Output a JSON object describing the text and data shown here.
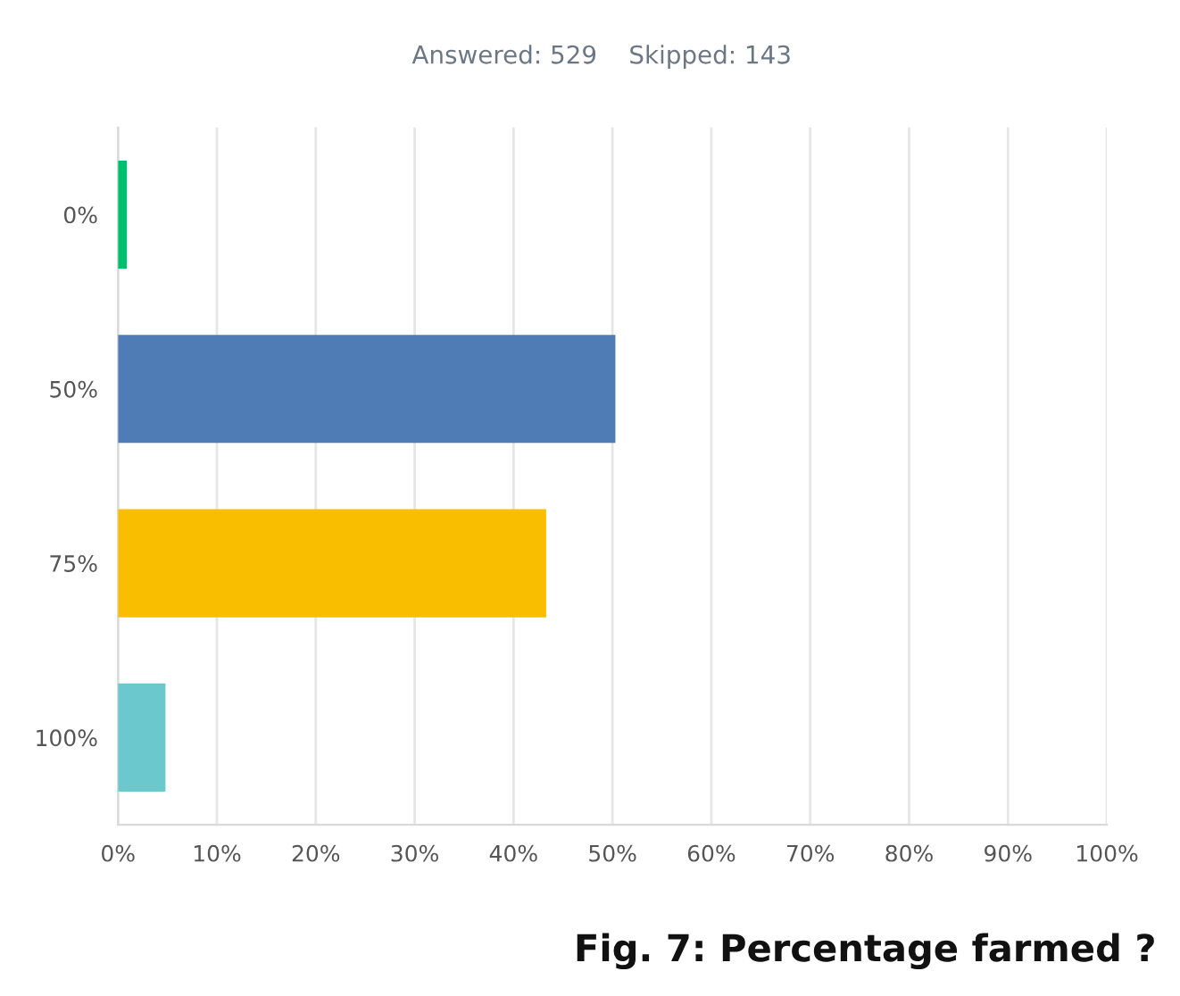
{
  "chart_data": {
    "type": "bar",
    "orientation": "horizontal",
    "subtitle": "Answered: 529    Skipped: 143",
    "categories": [
      "0%",
      "50%",
      "75%",
      "100%"
    ],
    "values": [
      0.9,
      50.3,
      43.3,
      4.8
    ],
    "colors": [
      "#00bf6f",
      "#507cb6",
      "#f9be00",
      "#6bc8cd"
    ],
    "xlim": [
      0,
      100
    ],
    "xticks": [
      {
        "value": 0,
        "label": "0%"
      },
      {
        "value": 10,
        "label": "10%"
      },
      {
        "value": 20,
        "label": "20%"
      },
      {
        "value": 30,
        "label": "30%"
      },
      {
        "value": 40,
        "label": "40%"
      },
      {
        "value": 50,
        "label": "50%"
      },
      {
        "value": 60,
        "label": "60%"
      },
      {
        "value": 70,
        "label": "70%"
      },
      {
        "value": 80,
        "label": "80%"
      },
      {
        "value": 90,
        "label": "90%"
      },
      {
        "value": 100,
        "label": "100%"
      }
    ],
    "grid": "x",
    "legend": false,
    "annotations": [
      "Fig. 7: Percentage farmed ?"
    ]
  }
}
